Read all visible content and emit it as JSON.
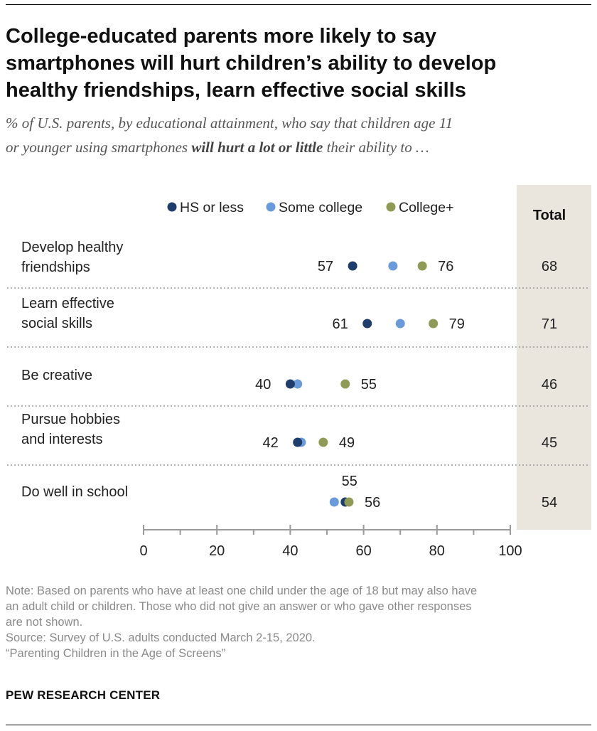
{
  "header": {
    "title_lines": [
      "College-educated parents more likely to say",
      "smartphones will hurt children’s ability to develop",
      "healthy friendships, learn effective social skills"
    ],
    "subtitle_line1": "% of U.S. parents, by educational attainment, who say that children age 11",
    "subtitle_line2_pre": "or younger using smartphones ",
    "subtitle_line2_bold": "will hurt a lot or little",
    "subtitle_line2_post": " their ability to …"
  },
  "chart_data": {
    "type": "scatter",
    "subtype": "dot-plot",
    "categories": [
      [
        "Develop healthy",
        "friendships"
      ],
      [
        "Learn effective",
        "social skills"
      ],
      [
        "Be creative"
      ],
      [
        "Pursue hobbies",
        "and interests"
      ],
      [
        "Do well in school"
      ]
    ],
    "series": [
      {
        "name": "HS or less",
        "color": "#1f3d6b",
        "values": [
          57,
          61,
          40,
          42,
          55
        ]
      },
      {
        "name": "Some college",
        "color": "#6a9ad9",
        "values": [
          68,
          70,
          42,
          43,
          52
        ]
      },
      {
        "name": "College+",
        "color": "#8f9a56",
        "values": [
          76,
          79,
          55,
          49,
          56
        ]
      }
    ],
    "data_labels": [
      [
        {
          "series": 0,
          "text": "57",
          "pos": "left"
        },
        {
          "series": 2,
          "text": "76",
          "pos": "right"
        }
      ],
      [
        {
          "series": 0,
          "text": "61",
          "pos": "left"
        },
        {
          "series": 2,
          "text": "79",
          "pos": "right"
        }
      ],
      [
        {
          "series": 0,
          "text": "40",
          "pos": "left"
        },
        {
          "series": 2,
          "text": "55",
          "pos": "right"
        }
      ],
      [
        {
          "series": 0,
          "text": "42",
          "pos": "left"
        },
        {
          "series": 2,
          "text": "49",
          "pos": "right"
        }
      ],
      [
        {
          "series": 0,
          "text": "55",
          "pos": "above"
        },
        {
          "series": 2,
          "text": "56",
          "pos": "right"
        }
      ]
    ],
    "total_label": "Total",
    "totals": [
      68,
      71,
      46,
      45,
      54
    ],
    "xlim": [
      0,
      100
    ],
    "xticks": [
      0,
      20,
      40,
      60,
      80,
      100
    ],
    "minor_ticks": [
      10,
      30,
      50,
      70,
      90
    ],
    "legend_position": "top",
    "total_column_color": "#eae6de"
  },
  "footer": {
    "note_lines": [
      "Note: Based on parents who have at least one child under the age of 18 but may also have",
      "an adult child or children. Those who did not give an answer or who gave other responses",
      "are not shown."
    ],
    "source": "Source: Survey of U.S. adults conducted March 2-15, 2020.",
    "report": "“Parenting Children in the Age of Screens”",
    "brand": "PEW RESEARCH CENTER"
  }
}
